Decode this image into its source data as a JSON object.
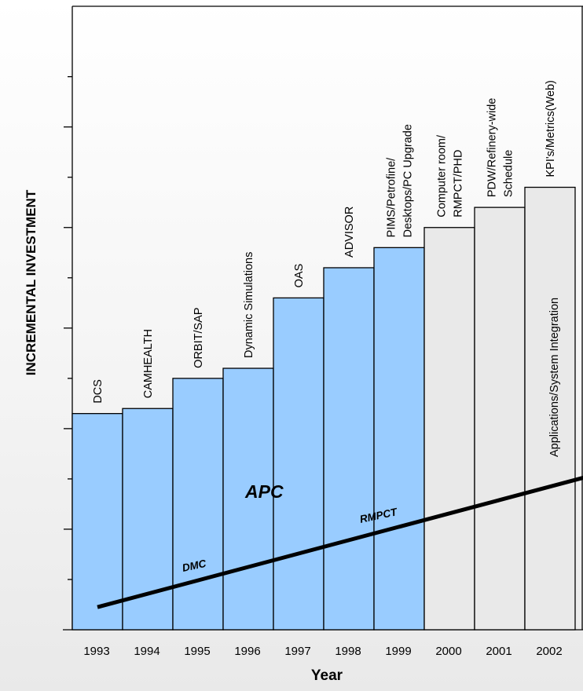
{
  "chart_data": {
    "type": "bar",
    "title": "",
    "xlabel": "Year",
    "ylabel": "INCREMENTAL INVESTMENT",
    "categories": [
      "1993",
      "1994",
      "1995",
      "1996",
      "1997",
      "1998",
      "1999",
      "2000",
      "2001",
      "2002"
    ],
    "values": [
      4.3,
      4.4,
      5.0,
      5.2,
      6.6,
      7.2,
      7.6,
      8.0,
      8.4,
      8.8
    ],
    "ylim": [
      0,
      12.4
    ],
    "y_major_ticks": [
      2,
      4,
      6,
      8,
      10
    ],
    "y_minor_ticks": [
      1,
      3,
      5,
      7,
      9,
      11
    ],
    "grid": false,
    "bar_labels": [
      [
        "DCS"
      ],
      [
        "CAMHEALTH"
      ],
      [
        "ORBIT/SAP"
      ],
      [
        "Dynamic Simulations"
      ],
      [
        "OAS"
      ],
      [
        "ADVISOR"
      ],
      [
        "PIMS/Petrofine/",
        "Desktops/PC Upgrade"
      ],
      [
        "Computer room/",
        "RMPCT/PHD"
      ],
      [
        "PDW/Refinery-wide",
        "Schedule"
      ],
      [
        "KPI's/Metrics(Web)"
      ]
    ],
    "bar_groups": [
      {
        "bars": [
          "1993",
          "1994",
          "1995",
          "1996",
          "1997",
          "1998",
          "1999"
        ],
        "color": "#99ccff"
      },
      {
        "bars": [
          "2000",
          "2001",
          "2002"
        ],
        "color": "#e9e9e9"
      }
    ],
    "trend_line": {
      "x_start": 1993.0,
      "y_start": 0.45,
      "x_end": 2002.95,
      "y_end": 3.1
    },
    "annotations": {
      "apc": "APC",
      "dmc": "DMC",
      "rmpct": "RMPCT",
      "integration": "Applications/System Integration"
    }
  }
}
